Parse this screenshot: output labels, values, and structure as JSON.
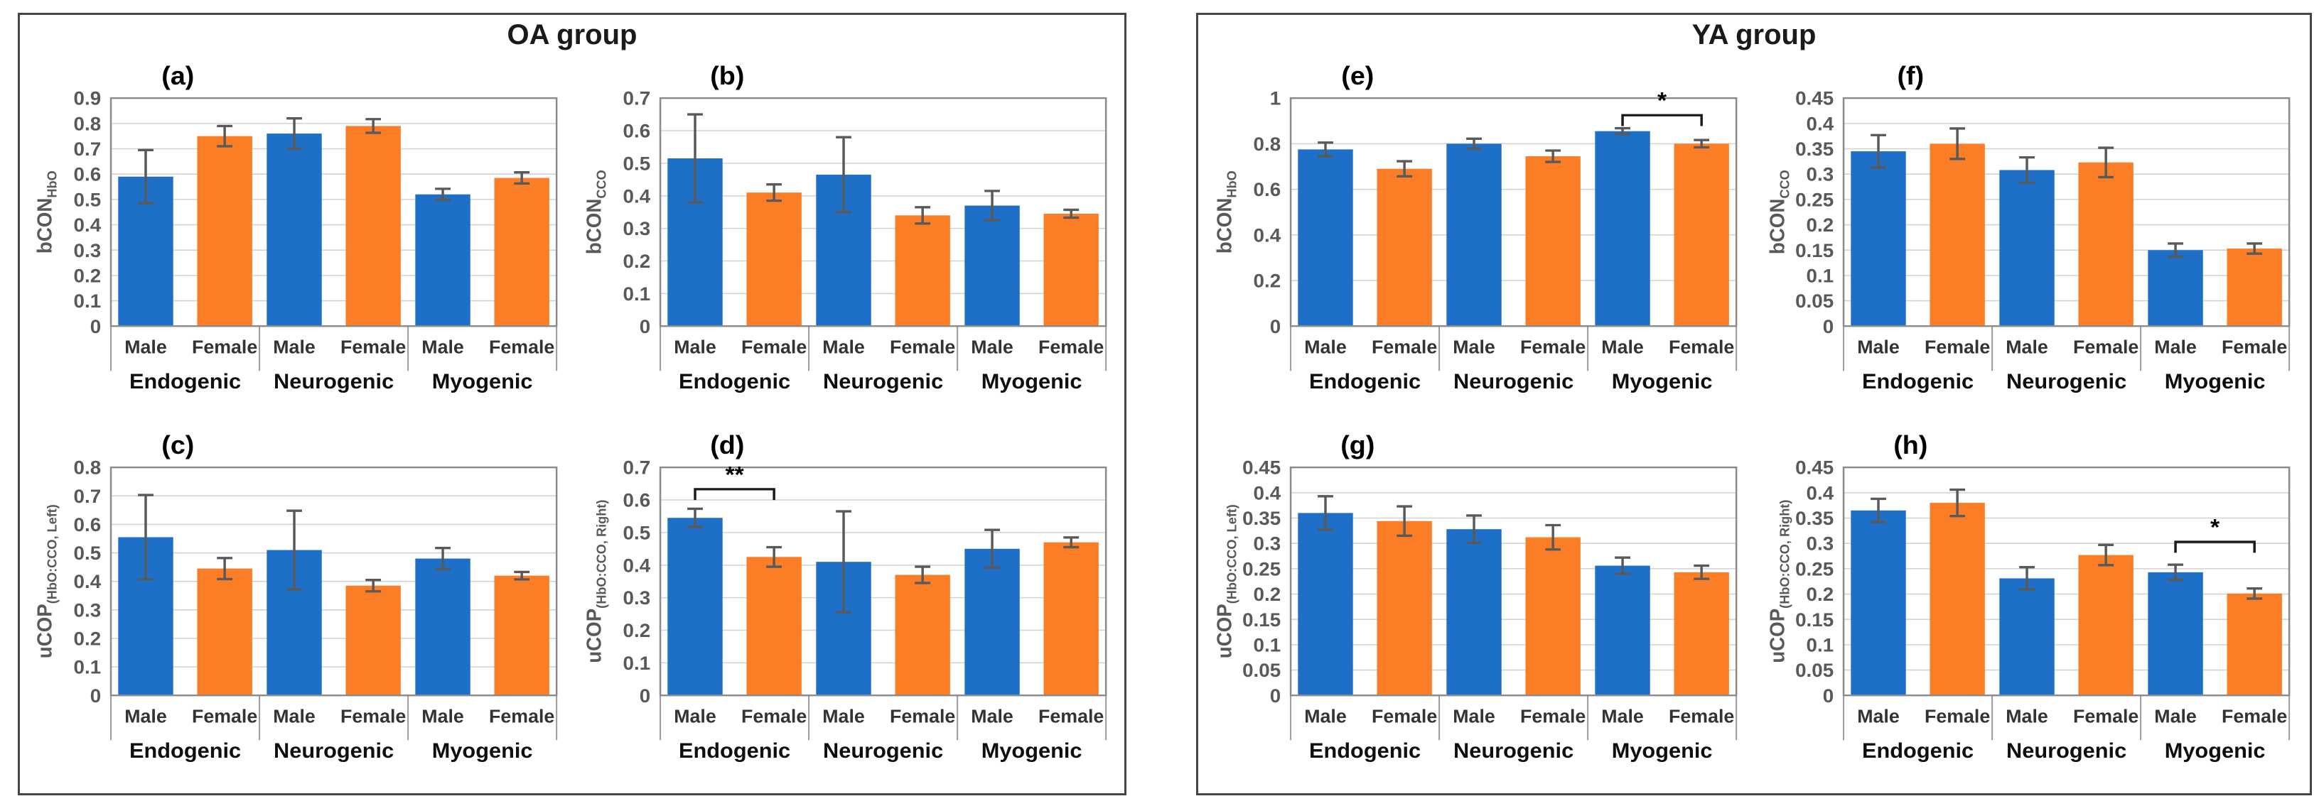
{
  "groups": [
    {
      "id": "oa",
      "title": "OA group",
      "panels": [
        "a",
        "b",
        "c",
        "d"
      ]
    },
    {
      "id": "ya",
      "title": "YA group",
      "panels": [
        "e",
        "f",
        "g",
        "h"
      ]
    }
  ],
  "colors": {
    "male_blue": "#1e6fc8",
    "female_orange": "#fb7d26",
    "error_gray": "#595959",
    "grid_gray": "#d2d2d2",
    "plot_border_gray": "#8a8a8a",
    "separator_gray": "#9b9b9b",
    "box_border_gray": "#454545",
    "tick_label_gray": "#595959"
  },
  "chart_data": [
    {
      "id": "a",
      "group": "OA group",
      "panel_label": "(a)",
      "type": "bar",
      "ylabel": {
        "main": "bCON",
        "sub": "HbO"
      },
      "ylim": [
        0,
        0.9
      ],
      "ytick_step": 0.1,
      "grid": true,
      "categories": [
        "Endogenic",
        "Neurogenic",
        "Myogenic"
      ],
      "sub_labels": [
        "Male",
        "Female"
      ],
      "series": [
        {
          "name": "Male",
          "values": [
            0.59,
            0.76,
            0.52
          ],
          "errors": [
            0.105,
            0.06,
            0.022
          ]
        },
        {
          "name": "Female",
          "values": [
            0.75,
            0.79,
            0.585
          ],
          "errors": [
            0.04,
            0.027,
            0.022
          ]
        }
      ],
      "significance": null
    },
    {
      "id": "b",
      "group": "OA group",
      "panel_label": "(b)",
      "type": "bar",
      "ylabel": {
        "main": "bCON",
        "sub": "CCO"
      },
      "ylim": [
        0,
        0.7
      ],
      "ytick_step": 0.1,
      "grid": true,
      "categories": [
        "Endogenic",
        "Neurogenic",
        "Myogenic"
      ],
      "sub_labels": [
        "Male",
        "Female"
      ],
      "series": [
        {
          "name": "Male",
          "values": [
            0.515,
            0.465,
            0.37
          ],
          "errors": [
            0.135,
            0.115,
            0.045
          ]
        },
        {
          "name": "Female",
          "values": [
            0.41,
            0.34,
            0.345
          ],
          "errors": [
            0.025,
            0.025,
            0.012
          ]
        }
      ],
      "significance": null
    },
    {
      "id": "c",
      "group": "OA group",
      "panel_label": "(c)",
      "type": "bar",
      "ylabel": {
        "main": "uCOP",
        "sub": "(HbO:CCO, Left)"
      },
      "ylim": [
        0,
        0.8
      ],
      "ytick_step": 0.1,
      "grid": true,
      "categories": [
        "Endogenic",
        "Neurogenic",
        "Myogenic"
      ],
      "sub_labels": [
        "Male",
        "Female"
      ],
      "series": [
        {
          "name": "Male",
          "values": [
            0.555,
            0.51,
            0.48
          ],
          "errors": [
            0.148,
            0.138,
            0.037
          ]
        },
        {
          "name": "Female",
          "values": [
            0.445,
            0.385,
            0.42
          ],
          "errors": [
            0.037,
            0.02,
            0.013
          ]
        }
      ],
      "significance": null
    },
    {
      "id": "d",
      "group": "OA group",
      "panel_label": "(d)",
      "type": "bar",
      "ylabel": {
        "main": "uCOP",
        "sub": "(HbO:CCO, Right)"
      },
      "ylim": [
        0,
        0.7
      ],
      "ytick_step": 0.1,
      "grid": true,
      "categories": [
        "Endogenic",
        "Neurogenic",
        "Myogenic"
      ],
      "sub_labels": [
        "Male",
        "Female"
      ],
      "series": [
        {
          "name": "Male",
          "values": [
            0.545,
            0.41,
            0.45
          ],
          "errors": [
            0.028,
            0.155,
            0.058
          ]
        },
        {
          "name": "Female",
          "values": [
            0.425,
            0.37,
            0.47
          ],
          "errors": [
            0.03,
            0.025,
            0.015
          ]
        }
      ],
      "significance": {
        "category_index": 0,
        "label": "**",
        "y": 0.633
      }
    },
    {
      "id": "e",
      "group": "YA group",
      "panel_label": "(e)",
      "type": "bar",
      "ylabel": {
        "main": "bCON",
        "sub": "HbO"
      },
      "ylim": [
        0,
        1
      ],
      "ytick_step": 0.2,
      "grid": true,
      "categories": [
        "Endogenic",
        "Neurogenic",
        "Myogenic"
      ],
      "sub_labels": [
        "Male",
        "Female"
      ],
      "series": [
        {
          "name": "Male",
          "values": [
            0.775,
            0.8,
            0.855
          ],
          "errors": [
            0.03,
            0.022,
            0.013
          ]
        },
        {
          "name": "Female",
          "values": [
            0.69,
            0.745,
            0.8
          ],
          "errors": [
            0.033,
            0.025,
            0.016
          ]
        }
      ],
      "significance": {
        "category_index": 2,
        "label": "*",
        "y": 0.925
      }
    },
    {
      "id": "f",
      "group": "YA group",
      "panel_label": "(f)",
      "type": "bar",
      "ylabel": {
        "main": "bCON",
        "sub": "CCO"
      },
      "ylim": [
        0,
        0.45
      ],
      "ytick_step": 0.05,
      "grid": true,
      "categories": [
        "Endogenic",
        "Neurogenic",
        "Myogenic"
      ],
      "sub_labels": [
        "Male",
        "Female"
      ],
      "series": [
        {
          "name": "Male",
          "values": [
            0.345,
            0.308,
            0.15
          ],
          "errors": [
            0.032,
            0.025,
            0.013
          ]
        },
        {
          "name": "Female",
          "values": [
            0.36,
            0.323,
            0.153
          ],
          "errors": [
            0.03,
            0.029,
            0.01
          ]
        }
      ],
      "significance": null
    },
    {
      "id": "g",
      "group": "YA group",
      "panel_label": "(g)",
      "type": "bar",
      "ylabel": {
        "main": "uCOP",
        "sub": "(HbO:CCO, Left)"
      },
      "ylim": [
        0,
        0.45
      ],
      "ytick_step": 0.05,
      "grid": true,
      "categories": [
        "Endogenic",
        "Neurogenic",
        "Myogenic"
      ],
      "sub_labels": [
        "Male",
        "Female"
      ],
      "series": [
        {
          "name": "Male",
          "values": [
            0.36,
            0.328,
            0.256
          ],
          "errors": [
            0.033,
            0.027,
            0.016
          ]
        },
        {
          "name": "Female",
          "values": [
            0.344,
            0.312,
            0.243
          ],
          "errors": [
            0.029,
            0.024,
            0.013
          ]
        }
      ],
      "significance": null
    },
    {
      "id": "h",
      "group": "YA group",
      "panel_label": "(h)",
      "type": "bar",
      "ylabel": {
        "main": "uCOP",
        "sub": "(HbO:CCO, Right)"
      },
      "ylim": [
        0,
        0.45
      ],
      "ytick_step": 0.05,
      "grid": true,
      "categories": [
        "Endogenic",
        "Neurogenic",
        "Myogenic"
      ],
      "sub_labels": [
        "Male",
        "Female"
      ],
      "series": [
        {
          "name": "Male",
          "values": [
            0.365,
            0.231,
            0.243
          ],
          "errors": [
            0.023,
            0.022,
            0.015
          ]
        },
        {
          "name": "Female",
          "values": [
            0.38,
            0.277,
            0.201
          ],
          "errors": [
            0.026,
            0.02,
            0.01
          ]
        }
      ],
      "significance": {
        "category_index": 2,
        "label": "*",
        "y": 0.303
      }
    }
  ]
}
